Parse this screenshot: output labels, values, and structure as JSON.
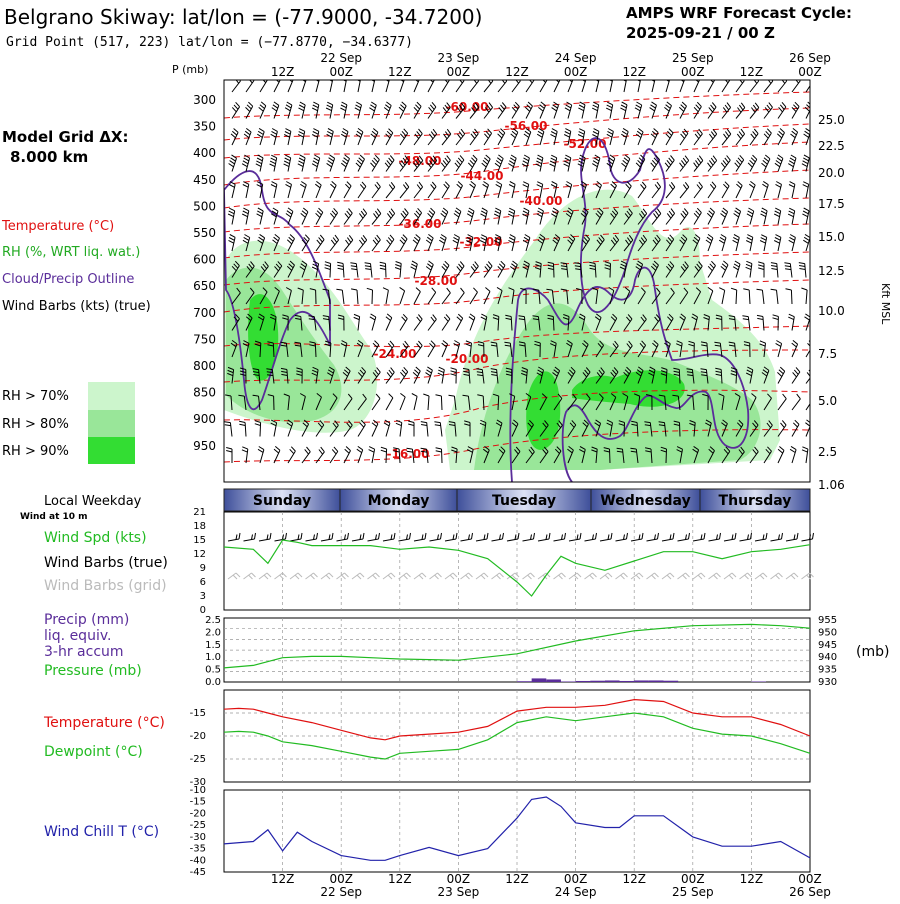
{
  "header": {
    "title": "Belgrano Skiway:  lat/lon = (-77.9000, -34.7200)",
    "grid_point": "Grid Point (517, 223) lat/lon = (−77.8770, −34.6377)",
    "cycle_label": "AMPS WRF Forecast Cycle:",
    "cycle_value": "2025-09-21 / 00  Z"
  },
  "left_legend": {
    "model_grid": "Model Grid ΔX:",
    "model_grid_value": "8.000 km",
    "temperature": "Temperature (°C)",
    "rh": "RH (%, WRT liq. wat.)",
    "cloud": "Cloud/Precip Outline",
    "wind": "Wind Barbs (kts) (true)",
    "rh70": "RH > 70%",
    "rh80": "RH > 80%",
    "rh90": "RH > 90%"
  },
  "colors": {
    "temperature": "#e01010",
    "rh70": "#ccf5cc",
    "rh80": "#99e699",
    "rh90": "#33dd33",
    "cloud": "#5a2d9a",
    "wind_green": "#22bb22",
    "precip": "#5a2d9a",
    "windchill": "#2222aa",
    "grid_barb": "#bbbbbb"
  },
  "time_axis": {
    "ticks": [
      "12Z",
      "00Z",
      "12Z",
      "00Z",
      "12Z",
      "00Z",
      "12Z",
      "00Z",
      "12Z",
      "00Z"
    ],
    "dates": [
      "22 Sep",
      "23 Sep",
      "24 Sep",
      "25 Sep",
      "26 Sep"
    ]
  },
  "weekdays": {
    "title": "Local Weekday",
    "labels": [
      "Sunday",
      "Monday",
      "Tuesday",
      "Wednesday",
      "Thursday"
    ]
  },
  "cross_section": {
    "p_label": "P (mb)",
    "pressure_levels": [
      "300",
      "350",
      "400",
      "450",
      "500",
      "550",
      "600",
      "650",
      "700",
      "750",
      "800",
      "850",
      "900",
      "950"
    ],
    "height_label": "Kft MSL",
    "height_ticks": [
      "25.0",
      "22.5",
      "20.0",
      "17.5",
      "15.0",
      "12.5",
      "10.0",
      "7.5",
      "5.0",
      "2.5",
      "1.06"
    ],
    "temp_labels": [
      "-60.00",
      "-56.00",
      "-52.00",
      "-48.00",
      "-44.00",
      "-40.00",
      "-36.00",
      "-32.00",
      "-28.00",
      "-24.00",
      "-20.00",
      "-16.00"
    ]
  },
  "wind_panel": {
    "title": "Wind at 10 m",
    "spd_label": "Wind Spd (kts)",
    "barbs_true": "Wind Barbs (true)",
    "barbs_grid": "Wind Barbs (grid)",
    "y_ticks": [
      "21",
      "18",
      "15",
      "12",
      "9",
      "6",
      "3",
      "0"
    ]
  },
  "precip_panel": {
    "label1": "Precip (mm)",
    "label2": "liq. equiv.",
    "label3": "3-hr accum",
    "label4": "Pressure (mb)",
    "left_ticks": [
      "2.5",
      "2.0",
      "1.5",
      "1.0",
      "0.5",
      "0.0"
    ],
    "right_ticks": [
      "955",
      "950",
      "945",
      "940",
      "935",
      "930"
    ],
    "unit": "(mb)"
  },
  "temp_panel": {
    "temp_label": "Temperature (°C)",
    "dew_label": "Dewpoint (°C)",
    "y_ticks": [
      "-15",
      "-20",
      "-25",
      "-30"
    ]
  },
  "windchill_panel": {
    "label": "Wind Chill T (°C)",
    "y_ticks": [
      "-10",
      "-15",
      "-20",
      "-25",
      "-30",
      "-35",
      "-40",
      "-45"
    ]
  },
  "chart_data": [
    {
      "type": "line",
      "name": "wind_speed_10m",
      "x_hours": [
        0,
        6,
        9,
        12,
        15,
        18,
        24,
        30,
        36,
        42,
        48,
        54,
        60,
        63,
        66,
        69,
        72,
        78,
        84,
        90,
        96,
        102,
        108,
        114,
        120
      ],
      "values": [
        13.5,
        13,
        10,
        15,
        14.5,
        13.8,
        13.8,
        13.8,
        13,
        13.5,
        12.8,
        11,
        6,
        3,
        7.5,
        11.5,
        10,
        8.5,
        10.5,
        12.5,
        12.5,
        11,
        12.5,
        13,
        14
      ],
      "ylim": [
        0,
        21
      ],
      "ylabel": "Wind Spd (kts)"
    },
    {
      "type": "line",
      "name": "pressure",
      "x_hours": [
        0,
        6,
        12,
        18,
        24,
        36,
        48,
        60,
        72,
        84,
        96,
        108,
        114,
        120
      ],
      "values": [
        935.5,
        936.5,
        939.5,
        940,
        940,
        939,
        938.5,
        941,
        946,
        950,
        952,
        952.5,
        952,
        951
      ],
      "ylim": [
        930,
        955
      ],
      "ylabel": "Pressure (mb)"
    },
    {
      "type": "bar",
      "name": "precip_3hr",
      "x_hours": [
        60,
        63,
        66,
        69,
        72,
        75,
        78,
        81,
        84,
        87,
        90,
        93,
        96,
        99,
        102,
        105,
        108,
        111,
        114
      ],
      "values": [
        0.03,
        0.14,
        0.1,
        0.02,
        0.04,
        0.05,
        0.06,
        0.04,
        0.06,
        0.06,
        0.05,
        0,
        0,
        0,
        0,
        0,
        0.02,
        0,
        0
      ],
      "ylim": [
        0,
        2.5
      ],
      "ylabel": "Precip (mm)"
    },
    {
      "type": "line",
      "name": "temperature",
      "x_hours": [
        0,
        3,
        6,
        9,
        12,
        18,
        24,
        30,
        33,
        36,
        42,
        48,
        54,
        60,
        66,
        72,
        78,
        84,
        90,
        96,
        102,
        108,
        114,
        120
      ],
      "values": [
        -13,
        -12.8,
        -13,
        -14,
        -15,
        -16.5,
        -18.5,
        -20.5,
        -21,
        -20,
        -19.5,
        -19,
        -17.5,
        -13.5,
        -12.5,
        -12.5,
        -12,
        -10.5,
        -11,
        -14,
        -15,
        -15,
        -17,
        -20
      ],
      "ylim": [
        -30,
        -10
      ],
      "ylabel": "Temperature (°C)"
    },
    {
      "type": "line",
      "name": "dewpoint",
      "x_hours": [
        0,
        3,
        6,
        9,
        12,
        18,
        24,
        30,
        33,
        36,
        42,
        48,
        54,
        60,
        66,
        72,
        78,
        84,
        90,
        96,
        102,
        108,
        114,
        120
      ],
      "values": [
        -19,
        -18.8,
        -19,
        -20,
        -21.5,
        -22.5,
        -24,
        -25.5,
        -26,
        -24.5,
        -24,
        -23.5,
        -21,
        -16.5,
        -15,
        -16,
        -15,
        -14,
        -15,
        -18,
        -19.5,
        -20,
        -22,
        -24.5
      ],
      "ylim": [
        -30,
        -10
      ],
      "ylabel": "Dewpoint (°C)"
    },
    {
      "type": "line",
      "name": "wind_chill",
      "x_hours": [
        0,
        6,
        9,
        12,
        15,
        18,
        24,
        30,
        33,
        36,
        42,
        48,
        54,
        60,
        63,
        66,
        69,
        72,
        78,
        81,
        84,
        90,
        96,
        102,
        108,
        114,
        120
      ],
      "values": [
        -33,
        -32,
        -27,
        -36,
        -28,
        -32,
        -38,
        -40,
        -40,
        -38,
        -34.5,
        -38,
        -35,
        -22,
        -14,
        -13,
        -17,
        -24,
        -26,
        -26,
        -21,
        -21,
        -30,
        -34,
        -34,
        -32,
        -39
      ],
      "ylim": [
        -45,
        -10
      ],
      "ylabel": "Wind Chill T (°C)"
    }
  ]
}
